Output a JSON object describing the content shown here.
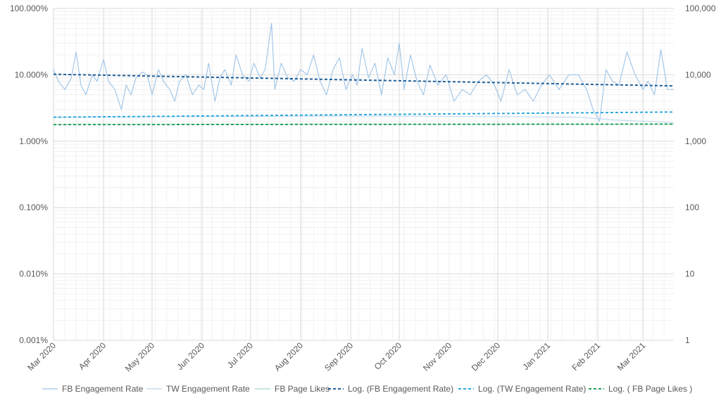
{
  "chart_data": {
    "type": "line",
    "left_axis": {
      "scale": "log",
      "range": [
        0.001,
        100
      ],
      "tick_labels": [
        "100.000%",
        "10.000%",
        "1.000%",
        "0.100%",
        "0.010%",
        "0.001%"
      ]
    },
    "right_axis": {
      "scale": "log",
      "range": [
        1,
        100000
      ],
      "tick_labels": [
        "100,000",
        "10,000",
        "1,000",
        "100",
        "10",
        "1"
      ]
    },
    "x_axis": {
      "range": [
        "2020-03-01",
        "2021-03-20"
      ],
      "tick_labels": [
        "Mar 2020",
        "Apr 2020",
        "May 2020",
        "Jun 2020",
        "Jul 2020",
        "Aug 2020",
        "Sep 2020",
        "Oct 2020",
        "Nov 2020",
        "Dec 2020",
        "Jan 2021",
        "Feb 2021",
        "Mar 2021"
      ]
    },
    "grid": true,
    "legend_position": "bottom",
    "series": [
      {
        "name": "FB Engagement Rate",
        "axis": "left",
        "color": "#9dc3e6",
        "style": "solid",
        "x": [
          "2020-03-01",
          "2020-03-04",
          "2020-03-08",
          "2020-03-12",
          "2020-03-15",
          "2020-03-18",
          "2020-03-21",
          "2020-03-25",
          "2020-03-28",
          "2020-04-01",
          "2020-04-04",
          "2020-04-08",
          "2020-04-12",
          "2020-04-15",
          "2020-04-18",
          "2020-04-21",
          "2020-04-25",
          "2020-04-28",
          "2020-05-01",
          "2020-05-05",
          "2020-05-08",
          "2020-05-12",
          "2020-05-15",
          "2020-05-18",
          "2020-05-22",
          "2020-05-26",
          "2020-05-30",
          "2020-06-02",
          "2020-06-05",
          "2020-06-09",
          "2020-06-12",
          "2020-06-15",
          "2020-06-19",
          "2020-06-22",
          "2020-06-26",
          "2020-06-30",
          "2020-07-03",
          "2020-07-07",
          "2020-07-10",
          "2020-07-14",
          "2020-07-16",
          "2020-07-20",
          "2020-07-24",
          "2020-07-28",
          "2020-08-01",
          "2020-08-05",
          "2020-08-09",
          "2020-08-13",
          "2020-08-17",
          "2020-08-21",
          "2020-08-25",
          "2020-08-29",
          "2020-09-02",
          "2020-09-05",
          "2020-09-08",
          "2020-09-12",
          "2020-09-16",
          "2020-09-20",
          "2020-09-24",
          "2020-09-28",
          "2020-10-01",
          "2020-10-04",
          "2020-10-08",
          "2020-10-12",
          "2020-10-16",
          "2020-10-20",
          "2020-10-25",
          "2020-10-30",
          "2020-11-04",
          "2020-11-09",
          "2020-11-14",
          "2020-11-19",
          "2020-11-24",
          "2020-11-29",
          "2020-12-03",
          "2020-12-08",
          "2020-12-13",
          "2020-12-18",
          "2020-12-23",
          "2020-12-28",
          "2021-01-02",
          "2021-01-08",
          "2021-01-14",
          "2021-01-20",
          "2021-01-25",
          "2021-01-29",
          "2021-02-02",
          "2021-02-06",
          "2021-02-10",
          "2021-02-14",
          "2021-02-19",
          "2021-02-24",
          "2021-03-01",
          "2021-03-04",
          "2021-03-08",
          "2021-03-12",
          "2021-03-16",
          "2021-03-20"
        ],
        "values": [
          12,
          8,
          6,
          9,
          22,
          7,
          5,
          10,
          8,
          17,
          8,
          6,
          3,
          7,
          5,
          9,
          11,
          10,
          5,
          12,
          8,
          6,
          4,
          8,
          10,
          5,
          7,
          6,
          15,
          4,
          9,
          12,
          7,
          20,
          10,
          8,
          15,
          9,
          12,
          60,
          6,
          15,
          9,
          8,
          12,
          10,
          20,
          8,
          5,
          12,
          18,
          6,
          10,
          7,
          25,
          9,
          15,
          5,
          18,
          10,
          30,
          6,
          20,
          8,
          5,
          14,
          7,
          10,
          4,
          6,
          5,
          8,
          10,
          7,
          4,
          12,
          5,
          6,
          4,
          7,
          10,
          6,
          10,
          10,
          6,
          3,
          2,
          12,
          8,
          7,
          22,
          10,
          6,
          8,
          5,
          24,
          6,
          6
        ]
      },
      {
        "name": "TW Engagement Rate",
        "axis": "left",
        "color": "#bdd7ee",
        "style": "solid",
        "x": [
          "2020-03-01",
          "2020-06-01",
          "2020-09-01",
          "2020-12-01",
          "2021-01-20",
          "2021-02-10",
          "2021-03-20"
        ],
        "values": [
          2.3,
          2.35,
          2.4,
          2.35,
          2.3,
          2.1,
          1.9
        ]
      },
      {
        "name": "FB Page Likes",
        "axis": "right",
        "color": "#a9d8d0",
        "style": "solid",
        "x": [
          "2020-03-01",
          "2020-06-01",
          "2020-09-01",
          "2020-12-01",
          "2021-03-20"
        ],
        "values": [
          1790,
          1795,
          1800,
          1805,
          1810
        ]
      },
      {
        "name": "Log. (FB Engagement Rate)",
        "axis": "left",
        "color": "#1f5f99",
        "style": "dashed",
        "x": [
          "2020-03-01",
          "2021-03-20"
        ],
        "values": [
          10.2,
          6.8
        ]
      },
      {
        "name": "Log. (TW Engagement Rate)",
        "axis": "left",
        "color": "#2eaadc",
        "style": "dashed",
        "x": [
          "2020-03-01",
          "2021-03-20"
        ],
        "values": [
          2.3,
          2.75
        ]
      },
      {
        "name": "Log. ( FB Page Likes )",
        "axis": "right",
        "color": "#27a05a",
        "style": "dashed",
        "x": [
          "2020-03-01",
          "2021-03-20"
        ],
        "values": [
          1780,
          1810
        ]
      }
    ]
  }
}
